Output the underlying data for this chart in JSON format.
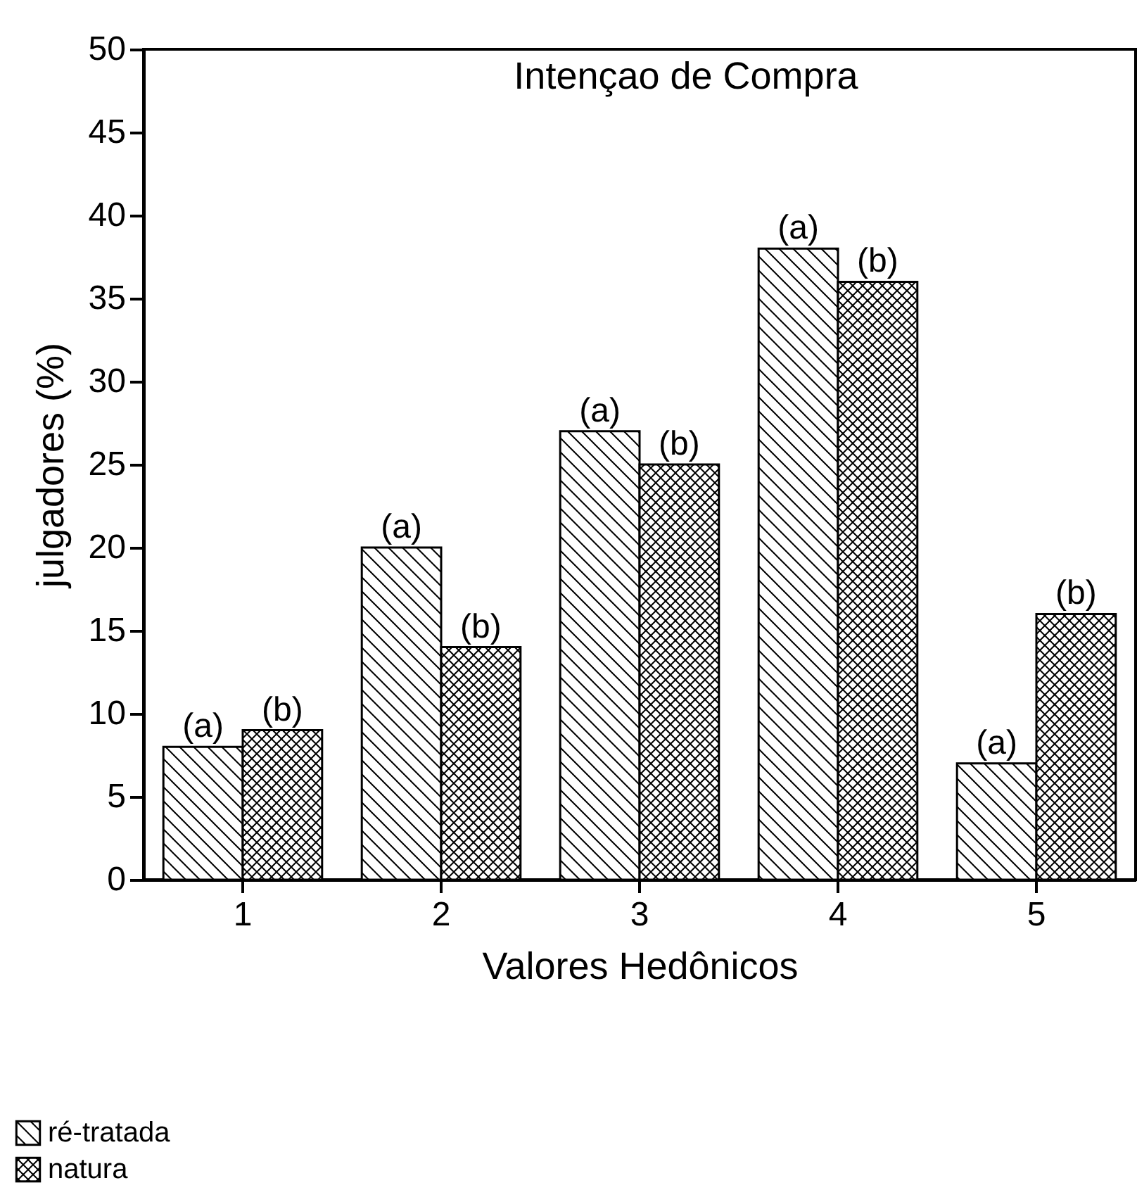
{
  "chart_data": {
    "type": "bar",
    "title": "Intençao de Compra",
    "xlabel": "Valores Hedônicos",
    "ylabel": "julgadores (%)",
    "categories": [
      "1",
      "2",
      "3",
      "4",
      "5"
    ],
    "series": [
      {
        "name": "ré-tratada",
        "color": "#000000",
        "values": [
          8,
          20,
          27,
          38,
          7
        ],
        "value_labels": [
          "(a)",
          "(a)",
          "(a)",
          "(a)",
          "(a)"
        ]
      },
      {
        "name": "natura",
        "color": "#000000",
        "values": [
          9,
          14,
          25,
          36,
          16
        ],
        "value_labels": [
          "(b)",
          "(b)",
          "(b)",
          "(b)",
          "(b)"
        ]
      }
    ],
    "ylim": [
      0,
      50
    ],
    "yticks": [
      0,
      5,
      10,
      15,
      20,
      25,
      30,
      35,
      40,
      45,
      50
    ],
    "legend": "bottom left"
  }
}
